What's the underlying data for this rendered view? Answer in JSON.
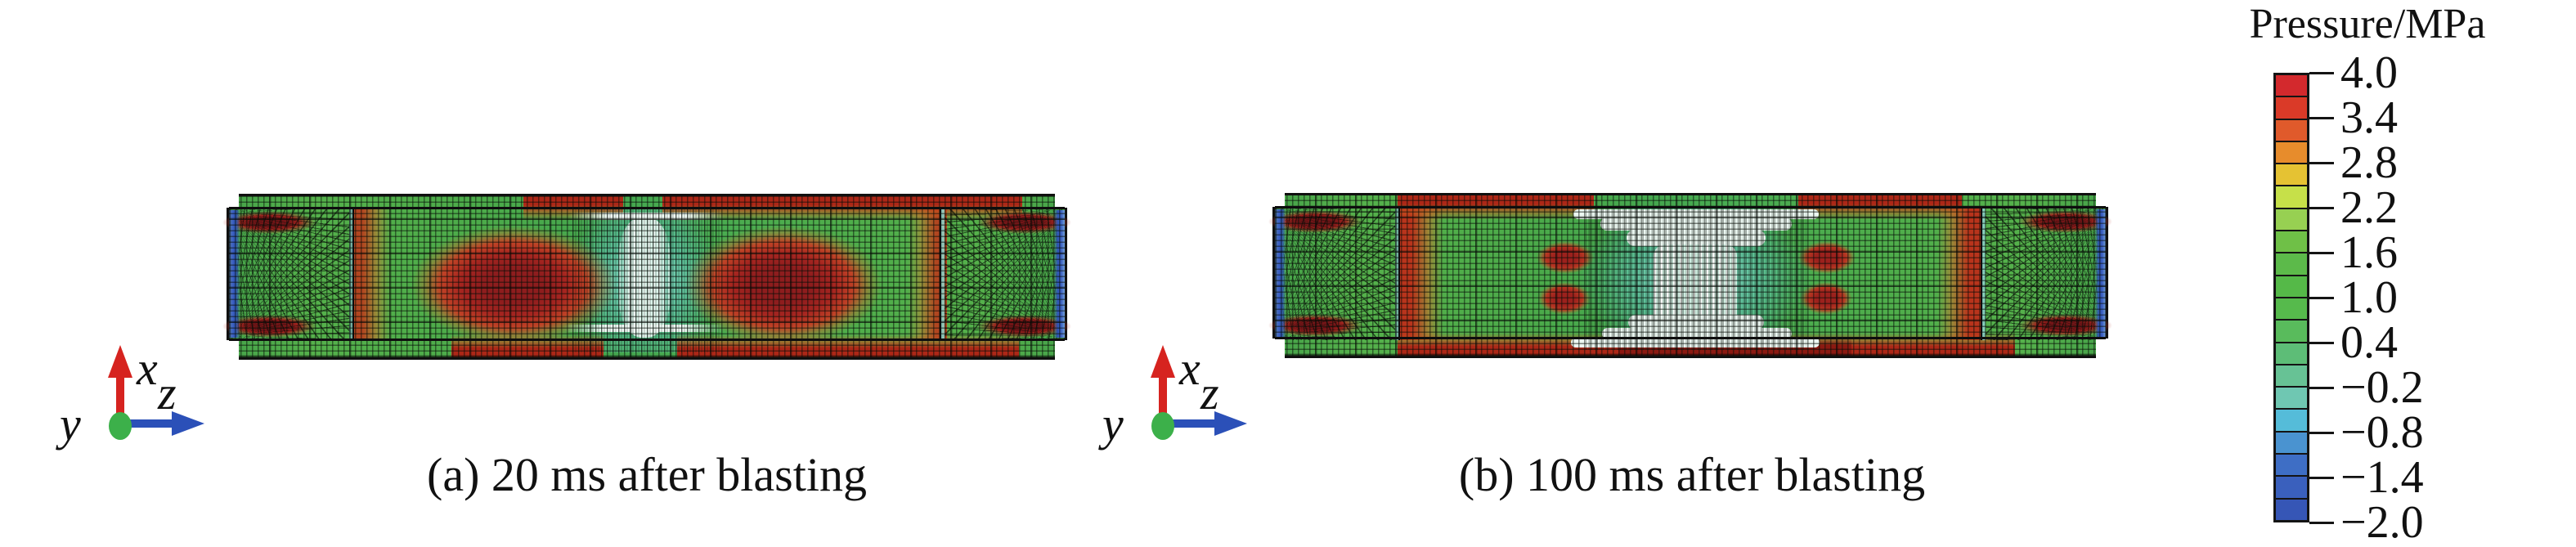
{
  "panels": [
    {
      "id": "a",
      "caption": "(a) 20 ms after blasting",
      "time_ms": 20
    },
    {
      "id": "b",
      "caption": "(b) 100 ms after blasting",
      "time_ms": 100
    }
  ],
  "triad": {
    "x": "x",
    "y": "y",
    "z": "z",
    "x_axis_color": "#d6231f",
    "z_axis_color": "#2b50b8",
    "origin_color": "#3cb04a"
  },
  "colorbar": {
    "title": "Pressure/MPa",
    "tick_labels": [
      "4.0",
      "3.4",
      "2.8",
      "2.2",
      "1.6",
      "1.0",
      "0.4",
      "−0.2",
      "−0.8",
      "−1.4",
      "−2.0"
    ]
  },
  "chart_data": {
    "type": "heatmap",
    "title": "Pressure/MPa",
    "legend_position": "right",
    "subplots": [
      {
        "label": "(a) 20 ms after blasting",
        "time_ms": 20,
        "description": "Meshed slab pressure contour: two large high-pressure red zones (~4 MPa) flanking a pale low-pressure cavity at midspan; blue (~-2 MPa) strips at both ends"
      },
      {
        "label": "(b) 100 ms after blasting",
        "time_ms": 100,
        "description": "Meshed slab pressure contour: enlarged pale low-pressure mushroom-shaped damage zone at midspan with small residual red patches; blue strips at both ends"
      }
    ],
    "colorbar": {
      "label": "Pressure/MPa",
      "unit": "MPa",
      "range": [
        -2.0,
        4.0
      ],
      "ticks": [
        4.0,
        3.4,
        2.8,
        2.2,
        1.6,
        1.0,
        0.4,
        -0.2,
        -0.8,
        -1.4,
        -2.0
      ],
      "segments": 20,
      "segment_colors": [
        "#d3292d",
        "#da3a28",
        "#e05a2b",
        "#e78c2c",
        "#e5c233",
        "#c6e049",
        "#97d052",
        "#6fc047",
        "#5cba4a",
        "#55b948",
        "#56ba4c",
        "#59bb5c",
        "#5dbd77",
        "#67c295",
        "#6fc7b2",
        "#55bcd9",
        "#4a93d0",
        "#3e6ec5",
        "#3a60bd",
        "#3656b6"
      ]
    },
    "axes": {
      "up": "x",
      "right": "z",
      "out_of_plane": "y"
    }
  }
}
